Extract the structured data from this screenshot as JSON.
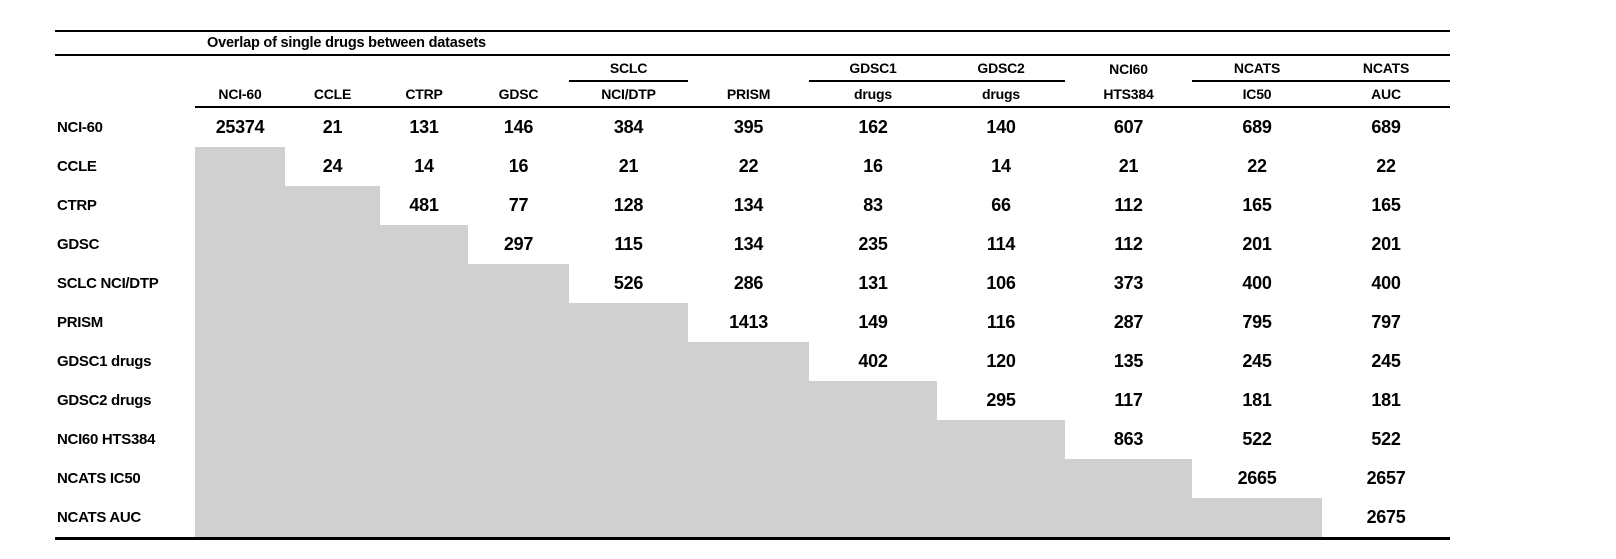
{
  "table": {
    "title": "Overlap of single drugs between datasets",
    "columns": [
      {
        "group": "",
        "label": "NCI-60",
        "group_underline": false
      },
      {
        "group": "",
        "label": "CCLE",
        "group_underline": false
      },
      {
        "group": "",
        "label": "CTRP",
        "group_underline": false
      },
      {
        "group": "",
        "label": "GDSC",
        "group_underline": false
      },
      {
        "group": "SCLC",
        "label": "NCI/DTP",
        "group_underline": true
      },
      {
        "group": "",
        "label": "PRISM",
        "group_underline": false
      },
      {
        "group": "GDSC1",
        "label": "drugs",
        "group_underline": true
      },
      {
        "group": "GDSC2",
        "label": "drugs",
        "group_underline": true
      },
      {
        "group": "NCI60",
        "label": "HTS384",
        "group_underline": false
      },
      {
        "group": "NCATS",
        "label": "IC50",
        "group_underline": true
      },
      {
        "group": "NCATS",
        "label": "AUC",
        "group_underline": true
      }
    ],
    "rows": [
      {
        "label": "NCI-60",
        "values": [
          "25374",
          "21",
          "131",
          "146",
          "384",
          "395",
          "162",
          "140",
          "607",
          "689",
          "689"
        ]
      },
      {
        "label": "CCLE",
        "values": [
          "24",
          "14",
          "16",
          "21",
          "22",
          "16",
          "14",
          "21",
          "22",
          "22"
        ]
      },
      {
        "label": "CTRP",
        "values": [
          "481",
          "77",
          "128",
          "134",
          "83",
          "66",
          "112",
          "165",
          "165"
        ]
      },
      {
        "label": "GDSC",
        "values": [
          "297",
          "115",
          "134",
          "235",
          "114",
          "112",
          "201",
          "201"
        ]
      },
      {
        "label": "SCLC NCI/DTP",
        "values": [
          "526",
          "286",
          "131",
          "106",
          "373",
          "400",
          "400"
        ]
      },
      {
        "label": "PRISM",
        "values": [
          "1413",
          "149",
          "116",
          "287",
          "795",
          "797"
        ]
      },
      {
        "label": "GDSC1 drugs",
        "values": [
          "402",
          "120",
          "135",
          "245",
          "245"
        ]
      },
      {
        "label": "GDSC2 drugs",
        "values": [
          "295",
          "117",
          "181",
          "181"
        ]
      },
      {
        "label": "NCI60 HTS384",
        "values": [
          "863",
          "522",
          "522"
        ]
      },
      {
        "label": "NCATS IC50",
        "values": [
          "2665",
          "2657"
        ]
      },
      {
        "label": "NCATS AUC",
        "values": [
          "2675"
        ]
      }
    ],
    "colors": {
      "shaded_cell": "#d0d0d0",
      "rule": "#000000",
      "text": "#000000",
      "background": "#ffffff"
    }
  },
  "chart_data": {
    "type": "table",
    "title": "Overlap of single drugs between datasets",
    "row_labels": [
      "NCI-60",
      "CCLE",
      "CTRP",
      "GDSC",
      "SCLC NCI/DTP",
      "PRISM",
      "GDSC1 drugs",
      "GDSC2 drugs",
      "NCI60 HTS384",
      "NCATS IC50",
      "NCATS AUC"
    ],
    "col_labels": [
      "NCI-60",
      "CCLE",
      "CTRP",
      "GDSC",
      "SCLC NCI/DTP",
      "PRISM",
      "GDSC1 drugs",
      "GDSC2 drugs",
      "NCI60 HTS384",
      "NCATS IC50",
      "NCATS AUC"
    ],
    "matrix_upper_triangle": [
      [
        25374,
        21,
        131,
        146,
        384,
        395,
        162,
        140,
        607,
        689,
        689
      ],
      [
        null,
        24,
        14,
        16,
        21,
        22,
        16,
        14,
        21,
        22,
        22
      ],
      [
        null,
        null,
        481,
        77,
        128,
        134,
        83,
        66,
        112,
        165,
        165
      ],
      [
        null,
        null,
        null,
        297,
        115,
        134,
        235,
        114,
        112,
        201,
        201
      ],
      [
        null,
        null,
        null,
        null,
        526,
        286,
        131,
        106,
        373,
        400,
        400
      ],
      [
        null,
        null,
        null,
        null,
        null,
        1413,
        149,
        116,
        287,
        795,
        797
      ],
      [
        null,
        null,
        null,
        null,
        null,
        null,
        402,
        120,
        135,
        245,
        245
      ],
      [
        null,
        null,
        null,
        null,
        null,
        null,
        null,
        295,
        117,
        181,
        181
      ],
      [
        null,
        null,
        null,
        null,
        null,
        null,
        null,
        null,
        863,
        522,
        522
      ],
      [
        null,
        null,
        null,
        null,
        null,
        null,
        null,
        null,
        null,
        2665,
        2657
      ],
      [
        null,
        null,
        null,
        null,
        null,
        null,
        null,
        null,
        null,
        null,
        2675
      ]
    ],
    "layout_hints": {
      "lower_triangle": "shaded gray, no values",
      "legend": "none",
      "grid": "off"
    }
  }
}
